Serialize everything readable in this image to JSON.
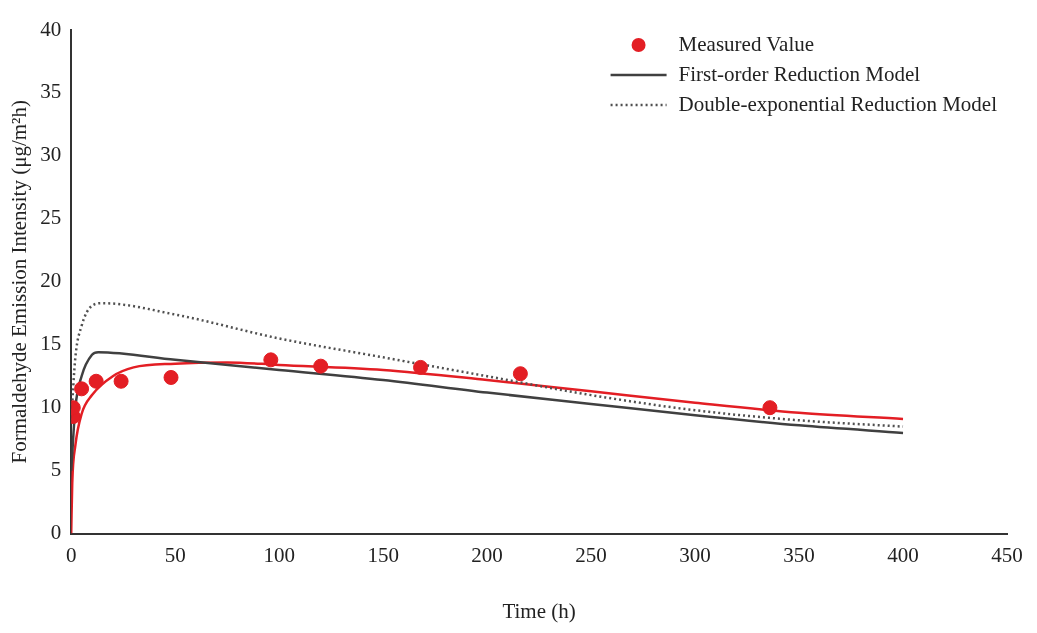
{
  "chart_data": {
    "type": "line",
    "xlabel": "Time (h)",
    "ylabel": "Formaldehyde Emission Intensity (μg/m²h)",
    "xlim": [
      0,
      450
    ],
    "xticks": [
      0,
      50,
      100,
      150,
      200,
      250,
      300,
      350,
      400,
      450
    ],
    "ylim": [
      0,
      40
    ],
    "yticks": [
      0,
      5,
      10,
      15,
      20,
      25,
      30,
      35,
      40
    ],
    "grid": false,
    "legend": "top right",
    "series": [
      {
        "name": "Measured Value",
        "type": "scatter",
        "marker": "circle",
        "color": "#e31e24",
        "x": [
          1,
          1,
          5,
          12,
          24,
          48,
          96,
          120,
          168,
          216,
          336
        ],
        "values": [
          9.3,
          10,
          11.5,
          12.1,
          12.1,
          12.4,
          13.8,
          13.3,
          13.2,
          12.7,
          10
        ]
      },
      {
        "name": "First-order Reduction Model",
        "line_style": "solid",
        "color": "#404040",
        "x": [
          0,
          2,
          5,
          10,
          13,
          50,
          100,
          150,
          200,
          250,
          300,
          350,
          400
        ],
        "values": [
          5,
          10,
          12.5,
          14.2,
          14.4,
          13.8,
          13,
          12.2,
          11.2,
          10.3,
          9.4,
          8.6,
          8
        ]
      },
      {
        "name": "Double-exponential Reduction Model",
        "line_style": "dotted",
        "color": "#505050",
        "x": [
          0,
          2,
          5,
          10,
          15,
          50,
          100,
          150,
          200,
          250,
          300,
          350,
          400
        ],
        "values": [
          9,
          14,
          16.5,
          18.1,
          18.3,
          17.4,
          15.5,
          14,
          12.5,
          11,
          9.8,
          9,
          8.5
        ]
      },
      {
        "line_style": "solid",
        "color": "#e31e24",
        "x": [
          0,
          0.5,
          2,
          5,
          10,
          20,
          30,
          50,
          75,
          100,
          150,
          200,
          250,
          300,
          350,
          400
        ],
        "values": [
          0,
          4,
          7,
          9.5,
          11,
          12.5,
          13.2,
          13.5,
          13.6,
          13.4,
          13,
          12.2,
          11.3,
          10.4,
          9.6,
          9.1
        ]
      }
    ]
  }
}
